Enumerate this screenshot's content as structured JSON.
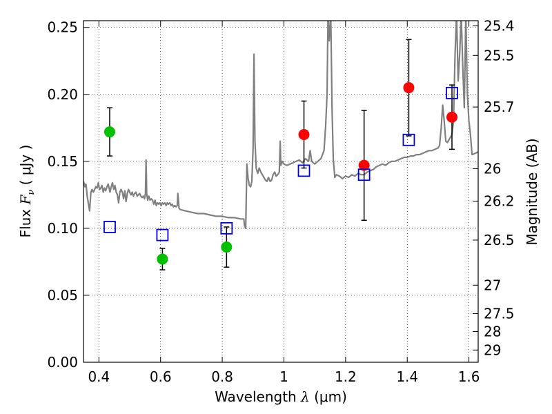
{
  "chart_data": {
    "type": "scatter",
    "xlabel_prefix": "Wavelength  ",
    "xlabel_symbol": "λ",
    "xlabel_suffix": " (μm)",
    "ylabel_prefix": "Flux  ",
    "ylabel_symbol": "F",
    "ylabel_subscript": "ν",
    "ylabel_suffix": "  ( μJy )",
    "y2label": "Magnitude (AB)",
    "xlim": [
      0.35,
      1.63
    ],
    "ylim": [
      0.0,
      0.255
    ],
    "grid": true,
    "x_ticks": [
      0.4,
      0.6,
      0.8,
      1.0,
      1.2,
      1.4,
      1.6
    ],
    "x_tick_labels": [
      "0.4",
      "0.6",
      "0.8",
      "1",
      "1.2",
      "1.4",
      "1.6"
    ],
    "y_ticks": [
      0.0,
      0.05,
      0.1,
      0.15,
      0.2,
      0.25
    ],
    "y_tick_labels": [
      "0.00",
      "0.05",
      "0.10",
      "0.15",
      "0.20",
      "0.25"
    ],
    "mag_ticks": [
      25.4,
      25.5,
      25.7,
      26,
      26.2,
      26.5,
      27,
      27.5,
      28,
      29
    ],
    "mag_tick_labels": [
      "25.4",
      "25.5",
      "25.7",
      "26",
      "26.2",
      "26.5",
      "27",
      "27.5",
      "28",
      "29"
    ],
    "series": [
      {
        "marker": "circle",
        "color": "#00c000",
        "points": [
          {
            "x": 0.435,
            "y": 0.172,
            "err": 0.018
          },
          {
            "x": 0.606,
            "y": 0.077,
            "err": 0.008
          },
          {
            "x": 0.814,
            "y": 0.086,
            "err": 0.015
          }
        ]
      },
      {
        "marker": "circle",
        "color": "#ff0000",
        "points": [
          {
            "x": 1.065,
            "y": 0.17,
            "err": 0.025
          },
          {
            "x": 1.26,
            "y": 0.147,
            "err": 0.041
          },
          {
            "x": 1.405,
            "y": 0.205,
            "err": 0.036
          },
          {
            "x": 1.545,
            "y": 0.183,
            "err": 0.024
          }
        ]
      },
      {
        "marker": "square",
        "color": "#0000dd",
        "points": [
          {
            "x": 0.435,
            "y": 0.101
          },
          {
            "x": 0.606,
            "y": 0.095
          },
          {
            "x": 0.814,
            "y": 0.1
          },
          {
            "x": 1.065,
            "y": 0.143
          },
          {
            "x": 1.26,
            "y": 0.14
          },
          {
            "x": 1.405,
            "y": 0.166
          },
          {
            "x": 1.545,
            "y": 0.201
          }
        ]
      }
    ],
    "model_spectrum": {
      "color": "#808080",
      "points": [
        [
          0.35,
          0.135
        ],
        [
          0.355,
          0.131
        ],
        [
          0.358,
          0.133
        ],
        [
          0.362,
          0.124
        ],
        [
          0.366,
          0.118
        ],
        [
          0.37,
          0.113
        ],
        [
          0.374,
          0.127
        ],
        [
          0.378,
          0.129
        ],
        [
          0.382,
          0.127
        ],
        [
          0.386,
          0.129
        ],
        [
          0.39,
          0.131
        ],
        [
          0.394,
          0.13
        ],
        [
          0.398,
          0.134
        ],
        [
          0.402,
          0.129
        ],
        [
          0.406,
          0.13
        ],
        [
          0.41,
          0.132
        ],
        [
          0.414,
          0.127
        ],
        [
          0.418,
          0.13
        ],
        [
          0.422,
          0.128
        ],
        [
          0.426,
          0.131
        ],
        [
          0.43,
          0.133
        ],
        [
          0.433,
          0.13
        ],
        [
          0.436,
          0.127
        ],
        [
          0.44,
          0.131
        ],
        [
          0.444,
          0.134
        ],
        [
          0.448,
          0.129
        ],
        [
          0.452,
          0.132
        ],
        [
          0.456,
          0.127
        ],
        [
          0.46,
          0.125
        ],
        [
          0.464,
          0.119
        ],
        [
          0.468,
          0.127
        ],
        [
          0.472,
          0.129
        ],
        [
          0.476,
          0.127
        ],
        [
          0.48,
          0.122
        ],
        [
          0.484,
          0.128
        ],
        [
          0.488,
          0.12
        ],
        [
          0.492,
          0.126
        ],
        [
          0.496,
          0.129
        ],
        [
          0.5,
          0.127
        ],
        [
          0.504,
          0.125
        ],
        [
          0.508,
          0.127
        ],
        [
          0.512,
          0.124
        ],
        [
          0.516,
          0.126
        ],
        [
          0.52,
          0.127
        ],
        [
          0.524,
          0.124
        ],
        [
          0.528,
          0.125
        ],
        [
          0.532,
          0.126
        ],
        [
          0.536,
          0.124
        ],
        [
          0.54,
          0.123
        ],
        [
          0.544,
          0.124
        ],
        [
          0.548,
          0.122
        ],
        [
          0.551,
          0.126
        ],
        [
          0.553,
          0.151
        ],
        [
          0.555,
          0.126
        ],
        [
          0.558,
          0.121
        ],
        [
          0.562,
          0.124
        ],
        [
          0.566,
          0.121
        ],
        [
          0.57,
          0.122
        ],
        [
          0.574,
          0.121
        ],
        [
          0.578,
          0.118
        ],
        [
          0.582,
          0.121
        ],
        [
          0.586,
          0.117
        ],
        [
          0.59,
          0.119
        ],
        [
          0.594,
          0.118
        ],
        [
          0.598,
          0.119
        ],
        [
          0.602,
          0.117
        ],
        [
          0.606,
          0.119
        ],
        [
          0.61,
          0.118
        ],
        [
          0.614,
          0.119
        ],
        [
          0.618,
          0.117
        ],
        [
          0.622,
          0.119
        ],
        [
          0.626,
          0.118
        ],
        [
          0.63,
          0.119
        ],
        [
          0.634,
          0.117
        ],
        [
          0.638,
          0.118
        ],
        [
          0.642,
          0.116
        ],
        [
          0.646,
          0.117
        ],
        [
          0.65,
          0.116
        ],
        [
          0.654,
          0.117
        ],
        [
          0.656,
          0.126
        ],
        [
          0.658,
          0.121
        ],
        [
          0.66,
          0.115
        ],
        [
          0.664,
          0.114
        ],
        [
          0.68,
          0.113
        ],
        [
          0.7,
          0.112
        ],
        [
          0.72,
          0.111
        ],
        [
          0.74,
          0.111
        ],
        [
          0.76,
          0.11
        ],
        [
          0.78,
          0.109
        ],
        [
          0.8,
          0.109
        ],
        [
          0.82,
          0.108
        ],
        [
          0.84,
          0.108
        ],
        [
          0.86,
          0.107
        ],
        [
          0.87,
          0.107
        ],
        [
          0.872,
          0.102
        ],
        [
          0.876,
          0.1
        ],
        [
          0.88,
          0.148
        ],
        [
          0.884,
          0.137
        ],
        [
          0.888,
          0.132
        ],
        [
          0.892,
          0.131
        ],
        [
          0.896,
          0.135
        ],
        [
          0.9,
          0.16
        ],
        [
          0.903,
          0.23
        ],
        [
          0.906,
          0.165
        ],
        [
          0.91,
          0.145
        ],
        [
          0.915,
          0.141
        ],
        [
          0.92,
          0.145
        ],
        [
          0.925,
          0.142
        ],
        [
          0.93,
          0.14
        ],
        [
          0.935,
          0.138
        ],
        [
          0.94,
          0.136
        ],
        [
          0.945,
          0.135
        ],
        [
          0.95,
          0.138
        ],
        [
          0.955,
          0.135
        ],
        [
          0.96,
          0.136
        ],
        [
          0.965,
          0.14
        ],
        [
          0.97,
          0.142
        ],
        [
          0.975,
          0.139
        ],
        [
          0.98,
          0.14
        ],
        [
          0.985,
          0.142
        ],
        [
          0.988,
          0.165
        ],
        [
          0.99,
          0.147
        ],
        [
          0.995,
          0.15
        ],
        [
          1.0,
          0.148
        ],
        [
          1.01,
          0.147
        ],
        [
          1.02,
          0.148
        ],
        [
          1.03,
          0.149
        ],
        [
          1.04,
          0.15
        ],
        [
          1.05,
          0.151
        ],
        [
          1.06,
          0.149
        ],
        [
          1.07,
          0.152
        ],
        [
          1.08,
          0.15
        ],
        [
          1.085,
          0.158
        ],
        [
          1.09,
          0.15
        ],
        [
          1.1,
          0.148
        ],
        [
          1.11,
          0.15
        ],
        [
          1.12,
          0.152
        ],
        [
          1.13,
          0.158
        ],
        [
          1.135,
          0.175
        ],
        [
          1.14,
          0.2
        ],
        [
          1.143,
          0.26
        ],
        [
          1.147,
          0.24
        ],
        [
          1.152,
          0.26
        ],
        [
          1.156,
          0.19
        ],
        [
          1.16,
          0.152
        ],
        [
          1.165,
          0.138
        ],
        [
          1.17,
          0.14
        ],
        [
          1.18,
          0.139
        ],
        [
          1.19,
          0.137
        ],
        [
          1.2,
          0.139
        ],
        [
          1.21,
          0.138
        ],
        [
          1.22,
          0.14
        ],
        [
          1.23,
          0.139
        ],
        [
          1.24,
          0.141
        ],
        [
          1.25,
          0.14
        ],
        [
          1.26,
          0.14
        ],
        [
          1.27,
          0.142
        ],
        [
          1.28,
          0.143
        ],
        [
          1.29,
          0.144
        ],
        [
          1.3,
          0.146
        ],
        [
          1.31,
          0.147
        ],
        [
          1.32,
          0.148
        ],
        [
          1.33,
          0.147
        ],
        [
          1.34,
          0.149
        ],
        [
          1.35,
          0.15
        ],
        [
          1.36,
          0.15
        ],
        [
          1.37,
          0.151
        ],
        [
          1.38,
          0.152
        ],
        [
          1.39,
          0.153
        ],
        [
          1.4,
          0.153
        ],
        [
          1.41,
          0.154
        ],
        [
          1.42,
          0.154
        ],
        [
          1.43,
          0.155
        ],
        [
          1.44,
          0.155
        ],
        [
          1.45,
          0.156
        ],
        [
          1.46,
          0.157
        ],
        [
          1.47,
          0.158
        ],
        [
          1.48,
          0.158
        ],
        [
          1.49,
          0.159
        ],
        [
          1.5,
          0.16
        ],
        [
          1.505,
          0.162
        ],
        [
          1.51,
          0.175
        ],
        [
          1.515,
          0.192
        ],
        [
          1.52,
          0.18
        ],
        [
          1.525,
          0.165
        ],
        [
          1.53,
          0.164
        ],
        [
          1.54,
          0.168
        ],
        [
          1.545,
          0.17
        ],
        [
          1.55,
          0.18
        ],
        [
          1.555,
          0.23
        ],
        [
          1.56,
          0.26
        ],
        [
          1.565,
          0.21
        ],
        [
          1.57,
          0.23
        ],
        [
          1.575,
          0.26
        ],
        [
          1.58,
          0.22
        ],
        [
          1.585,
          0.19
        ],
        [
          1.59,
          0.26
        ],
        [
          1.595,
          0.2
        ],
        [
          1.6,
          0.18
        ],
        [
          1.605,
          0.17
        ],
        [
          1.61,
          0.155
        ],
        [
          1.62,
          0.156
        ],
        [
          1.63,
          0.157
        ]
      ]
    }
  }
}
